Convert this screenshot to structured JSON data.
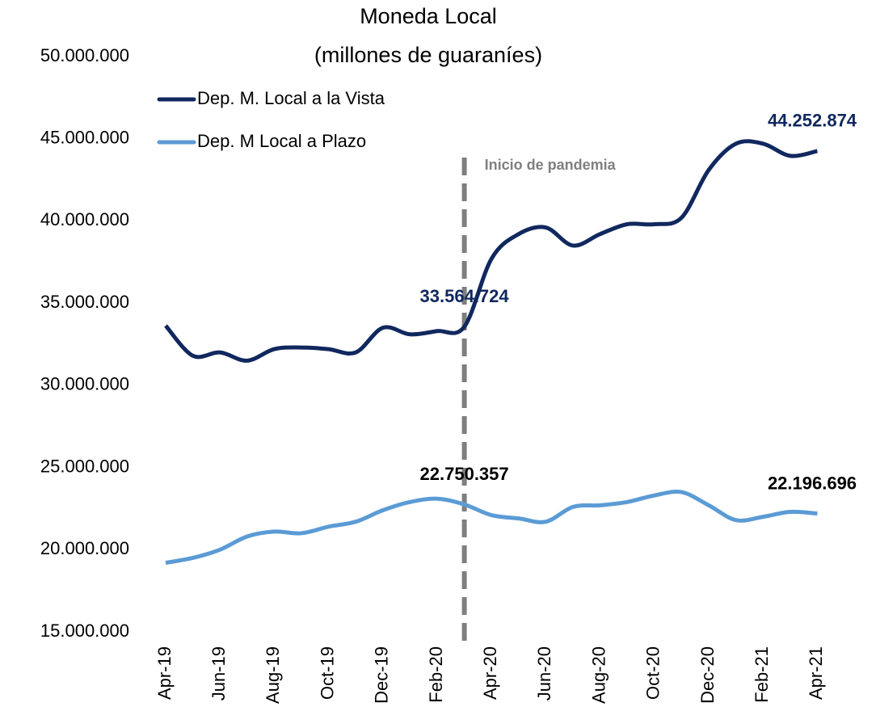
{
  "chart_data": {
    "type": "line",
    "title": "Moneda Local",
    "subtitle": "(millones de guaraníes)",
    "annotation": "Inicio de pandemia",
    "categories": [
      "Apr-19",
      null,
      "Jun-19",
      null,
      "Aug-19",
      null,
      "Oct-19",
      null,
      "Dec-19",
      null,
      "Feb-20",
      null,
      "Apr-20",
      null,
      "Jun-20",
      null,
      "Aug-20",
      null,
      "Oct-20",
      null,
      "Dec-20",
      null,
      "Feb-21",
      null,
      "Apr-21"
    ],
    "series": [
      {
        "name": "Dep. M. Local a la Vista",
        "color": "#10285e",
        "label_color": "#10285e",
        "values": [
          33630000,
          31800000,
          32000000,
          31500000,
          32200000,
          32300000,
          32200000,
          32000000,
          33500000,
          33100000,
          33300000,
          33564724,
          37700000,
          39200000,
          39600000,
          38500000,
          39200000,
          39800000,
          39800000,
          40200000,
          43100000,
          44700000,
          44700000,
          43960000,
          44252874
        ],
        "value_labels": [
          null,
          null,
          null,
          null,
          null,
          null,
          null,
          null,
          null,
          null,
          null,
          "33.564.724",
          null,
          null,
          null,
          null,
          null,
          null,
          null,
          null,
          null,
          null,
          null,
          null,
          "44.252.874"
        ]
      },
      {
        "name": "Dep. M Local  a Plazo",
        "color": "#5b9bd5",
        "label_color": "#000000",
        "values": [
          19200000,
          19500000,
          20000000,
          20800000,
          21100000,
          21000000,
          21400000,
          21700000,
          22400000,
          22900000,
          23100000,
          22750357,
          22100000,
          21900000,
          21700000,
          22600000,
          22700000,
          22900000,
          23300000,
          23500000,
          22700000,
          21800000,
          22000000,
          22300000,
          22196696
        ],
        "value_labels": [
          null,
          null,
          null,
          null,
          null,
          null,
          null,
          null,
          null,
          null,
          null,
          "22.750.357",
          null,
          null,
          null,
          null,
          null,
          null,
          null,
          null,
          null,
          null,
          null,
          null,
          "22.196.696"
        ]
      }
    ],
    "ylim": [
      15000000,
      50000000
    ],
    "yticks": [
      {
        "value": 15000000,
        "label": "15.000.000"
      },
      {
        "value": 20000000,
        "label": "20.000.000"
      },
      {
        "value": 25000000,
        "label": "25.000.000"
      },
      {
        "value": 30000000,
        "label": "30.000.000"
      },
      {
        "value": 35000000,
        "label": "35.000.000"
      },
      {
        "value": 40000000,
        "label": "40.000.000"
      },
      {
        "value": 45000000,
        "label": "45.000.000"
      },
      {
        "value": 50000000,
        "label": "50.000.000"
      }
    ],
    "grid": false,
    "legend": "top-left"
  }
}
